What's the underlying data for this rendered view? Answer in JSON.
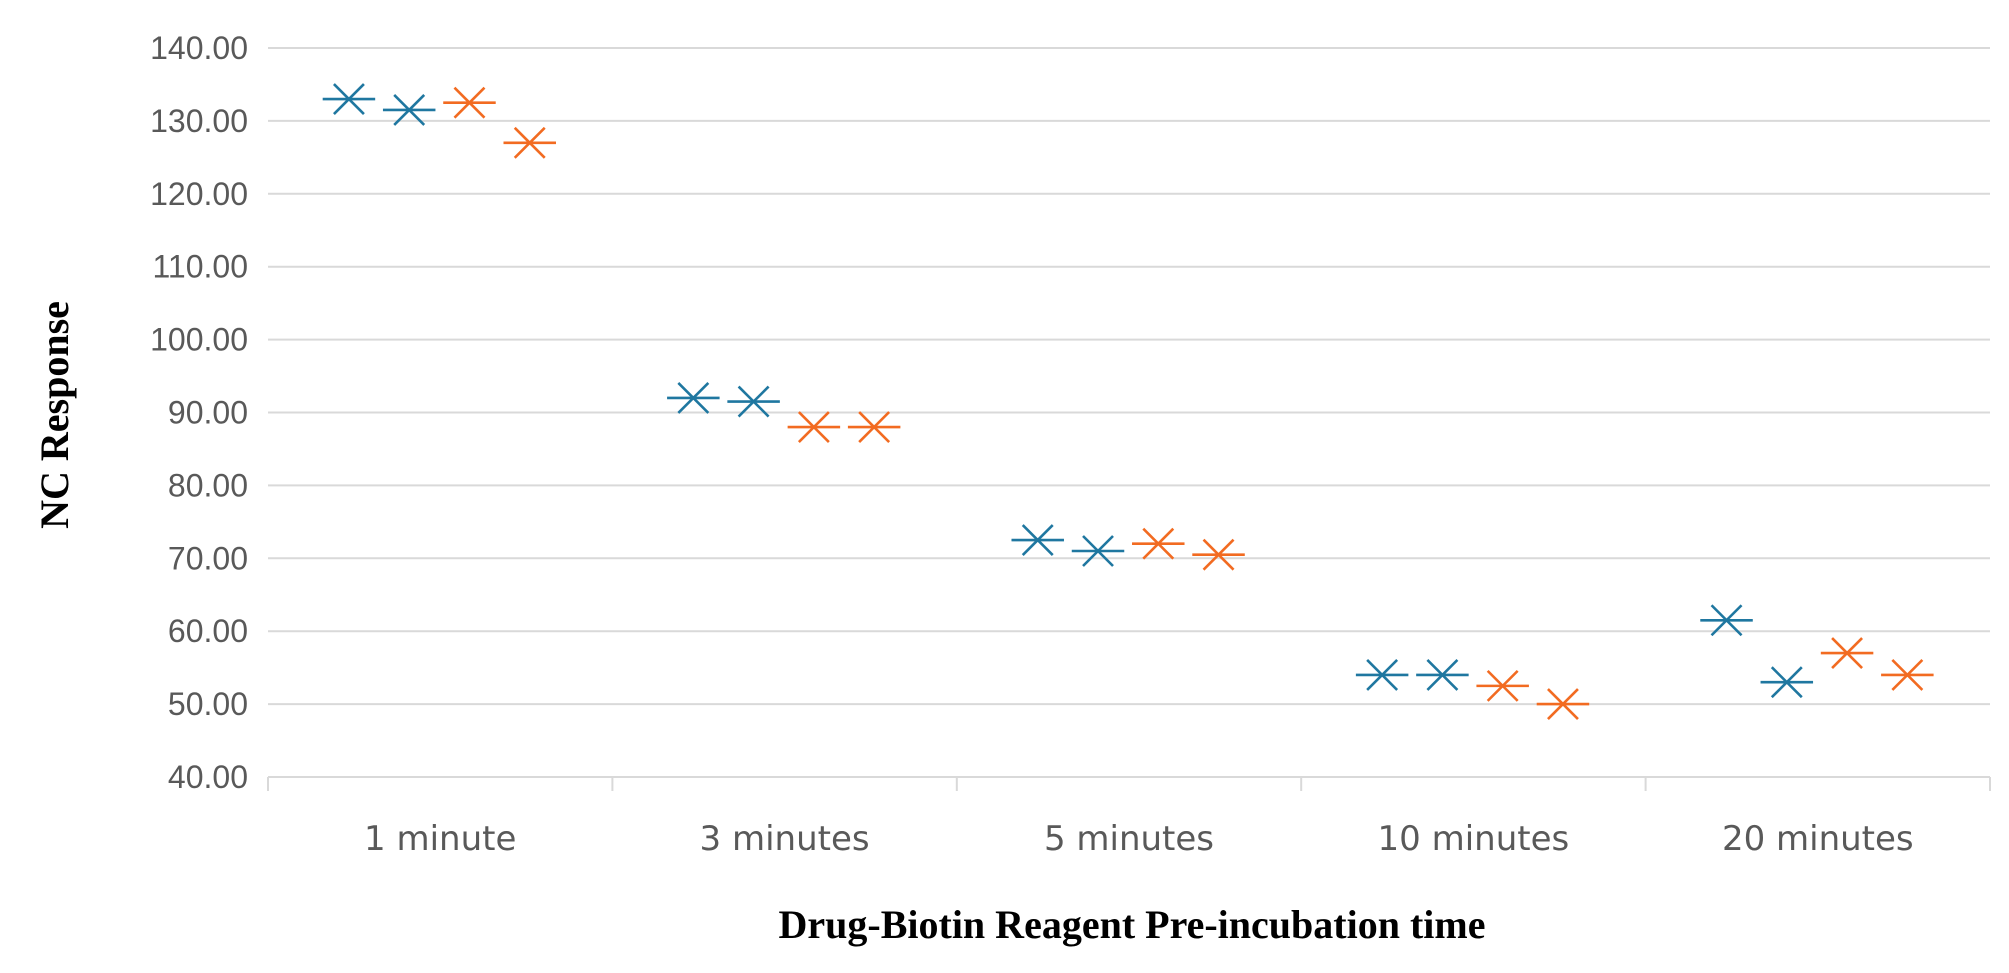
{
  "chart_data": {
    "type": "scatter",
    "title": "",
    "xlabel": "Drug-Biotin Reagent Pre-incubation time",
    "ylabel": "NC Response",
    "categories": [
      "1 minute",
      "3 minutes",
      "5 minutes",
      "10 minutes",
      "20 minutes"
    ],
    "ylim": [
      40,
      140
    ],
    "yticks": [
      "40.00",
      "50.00",
      "60.00",
      "70.00",
      "80.00",
      "90.00",
      "100.00",
      "110.00",
      "120.00",
      "130.00",
      "140.00"
    ],
    "grid": true,
    "legend": "none",
    "marker": "asterisk",
    "points_per_category": 4,
    "series": [
      {
        "color": "#1F77A0",
        "values": [
          [
            133.0,
            131.5
          ],
          [
            92.0,
            91.5
          ],
          [
            72.5,
            71.0
          ],
          [
            54.0,
            54.0
          ],
          [
            61.5,
            53.0
          ]
        ]
      },
      {
        "color": "#F26B21",
        "values": [
          [
            132.5,
            127.0
          ],
          [
            88.0,
            88.0
          ],
          [
            72.0,
            70.5
          ],
          [
            52.5,
            50.0
          ],
          [
            57.0,
            54.0
          ]
        ]
      }
    ]
  }
}
